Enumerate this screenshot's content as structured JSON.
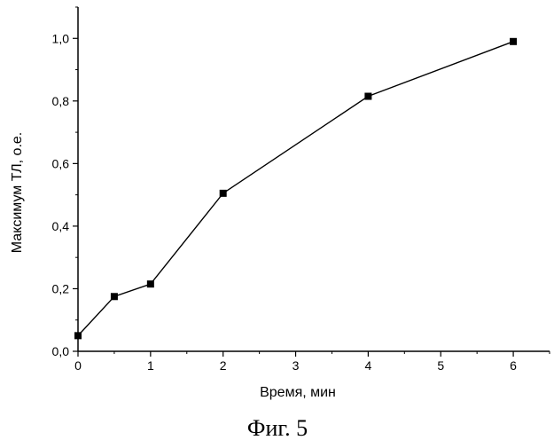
{
  "caption": "Фиг. 5",
  "chart_data": {
    "type": "line",
    "title": "",
    "xlabel": "Время, мин",
    "ylabel": "Максимум ТЛ, о.е.",
    "xlim": [
      0,
      6.5
    ],
    "ylim": [
      0,
      1.1
    ],
    "x_ticks": [
      "0",
      "1",
      "2",
      "3",
      "4",
      "5",
      "6"
    ],
    "y_ticks": [
      "0,0",
      "0,2",
      "0,4",
      "0,6",
      "0,8",
      "1,0"
    ],
    "grid": false,
    "legend": "none",
    "series": [
      {
        "x": [
          0,
          0.5,
          1,
          2,
          4,
          6
        ],
        "y": [
          0.05,
          0.175,
          0.215,
          0.505,
          0.815,
          0.99
        ]
      }
    ],
    "marker": "square",
    "color": "#000000"
  }
}
